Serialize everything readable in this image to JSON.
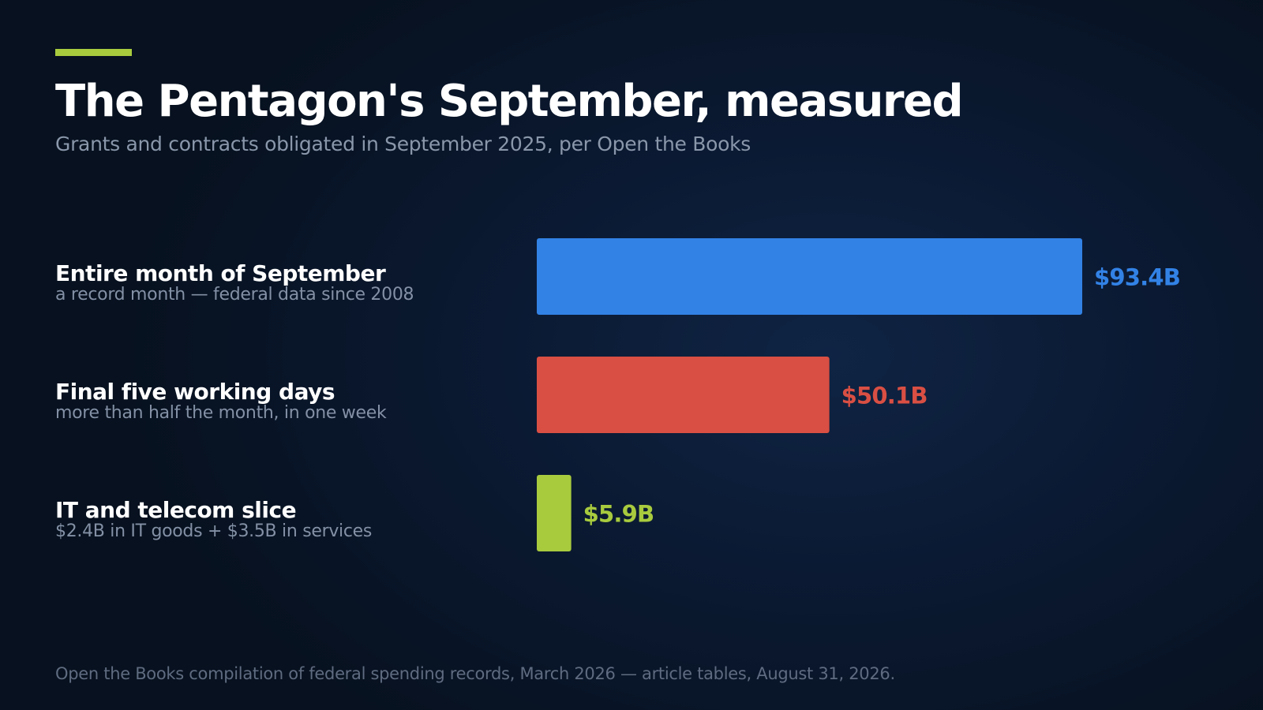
{
  "header": {
    "title": "The Pentagon's September, measured",
    "subtitle": "Grants and contracts obligated in September 2025, per Open the Books",
    "accent_color": "#a8cb3e"
  },
  "chart_data": {
    "type": "bar",
    "orientation": "horizontal",
    "title": "The Pentagon's September, measured",
    "subtitle": "Grants and contracts obligated in September 2025, per Open the Books",
    "xlim": [
      0,
      93.4
    ],
    "grid": false,
    "bars": [
      {
        "label": "Entire month of September",
        "note": "a record month — federal data since 2008",
        "value": 93.4,
        "value_label": "$93.4B",
        "color": "#3282e6"
      },
      {
        "label": "Final five working days",
        "note": "more than half the month, in one week",
        "value": 50.1,
        "value_label": "$50.1B",
        "color": "#d94f43"
      },
      {
        "label": "IT and telecom slice",
        "note": "$2.4B in IT goods + $3.5B in services",
        "value": 5.9,
        "value_label": "$5.9B",
        "color": "#a8cb3e"
      }
    ]
  },
  "footer": {
    "source": "Open the Books compilation of federal spending records, March 2026 — article tables, August 31, 2026."
  }
}
